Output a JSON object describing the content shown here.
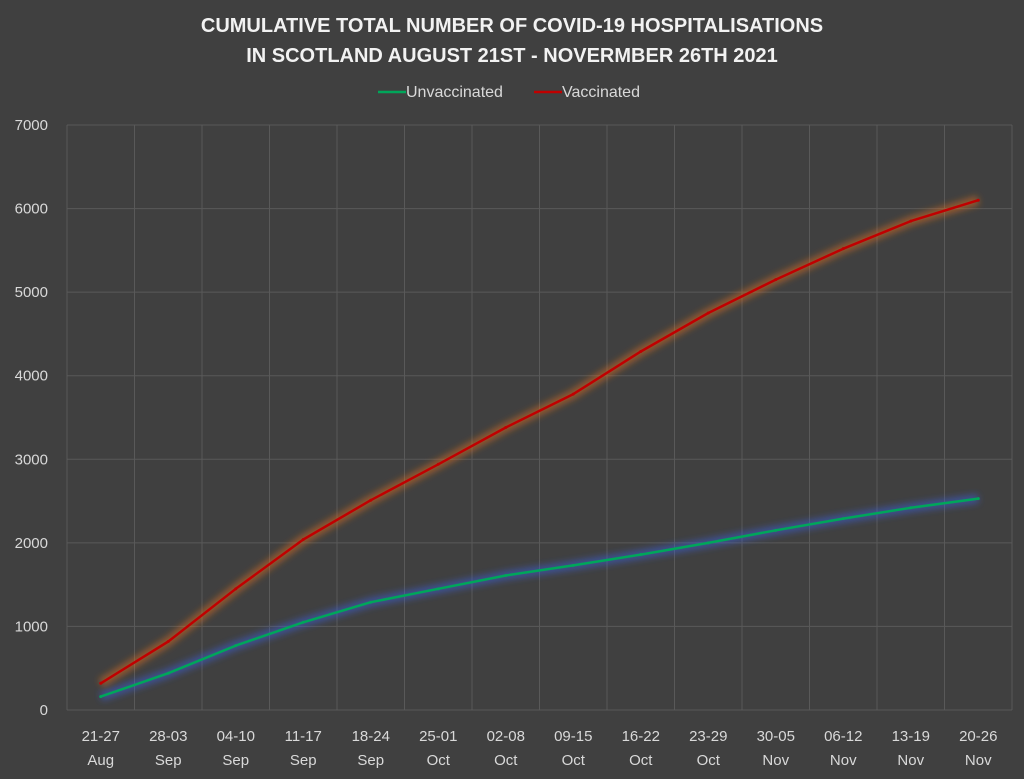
{
  "chart_data": {
    "type": "line",
    "title": [
      "CUMULATIVE TOTAL NUMBER OF COVID-19 HOSPITALISATIONS",
      "IN SCOTLAND AUGUST 21ST - NOVERMBER 26TH 2021"
    ],
    "categories": [
      [
        "21-27",
        "Aug"
      ],
      [
        "28-03",
        "Sep"
      ],
      [
        "04-10",
        "Sep"
      ],
      [
        "11-17",
        "Sep"
      ],
      [
        "18-24",
        "Sep"
      ],
      [
        "25-01",
        "Oct"
      ],
      [
        "02-08",
        "Oct"
      ],
      [
        "09-15",
        "Oct"
      ],
      [
        "16-22",
        "Oct"
      ],
      [
        "23-29",
        "Oct"
      ],
      [
        "30-05",
        "Nov"
      ],
      [
        "06-12",
        "Nov"
      ],
      [
        "13-19",
        "Nov"
      ],
      [
        "20-26",
        "Nov"
      ]
    ],
    "series": [
      {
        "name": "Unvaccinated",
        "color": "#00a65a",
        "glow": "#3a5fd9",
        "values": [
          160,
          440,
          770,
          1050,
          1290,
          1450,
          1610,
          1730,
          1860,
          2000,
          2150,
          2290,
          2420,
          2530
        ]
      },
      {
        "name": "Vaccinated",
        "color": "#c00000",
        "glow": "#e07020",
        "values": [
          320,
          820,
          1450,
          2040,
          2510,
          2940,
          3380,
          3780,
          4290,
          4750,
          5150,
          5520,
          5850,
          6100
        ]
      }
    ],
    "ylim": [
      0,
      7000
    ],
    "yticks": [
      0,
      1000,
      2000,
      3000,
      4000,
      5000,
      6000,
      7000
    ],
    "grid": true,
    "legend_position": "top-center"
  },
  "colors": {
    "background": "#404040",
    "grid": "#595959",
    "text": "#d9d9d9"
  }
}
